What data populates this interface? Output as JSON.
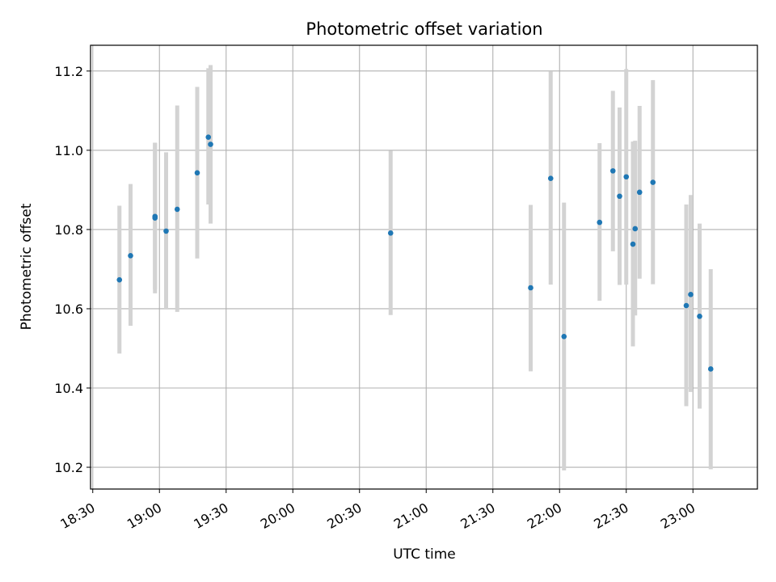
{
  "chart_data": {
    "type": "scatter",
    "title": "Photometric offset variation",
    "xlabel": "UTC time",
    "ylabel": "Photometric offset",
    "xlim": [
      "18:29",
      "23:29"
    ],
    "ylim": [
      10.145,
      11.265
    ],
    "grid": true,
    "x_ticks": [
      "18:30",
      "19:00",
      "19:30",
      "20:00",
      "20:30",
      "21:00",
      "21:30",
      "22:00",
      "22:30",
      "23:00"
    ],
    "y_ticks": [
      10.2,
      10.4,
      10.6,
      10.8,
      11.0,
      11.2
    ],
    "point_color": "#1f77b4",
    "errorbar_color": "#d3d3d3",
    "points": [
      {
        "x": "18:42",
        "y": 10.673,
        "lo": 10.487,
        "hi": 10.86
      },
      {
        "x": "18:47",
        "y": 10.734,
        "lo": 10.557,
        "hi": 10.915
      },
      {
        "x": "18:58",
        "y": 10.833,
        "lo": 10.649,
        "hi": 11.019
      },
      {
        "x": "18:58",
        "y": 10.829,
        "lo": 10.639,
        "hi": 11.019
      },
      {
        "x": "19:03",
        "y": 10.796,
        "lo": 10.6,
        "hi": 10.995
      },
      {
        "x": "19:08",
        "y": 10.851,
        "lo": 10.592,
        "hi": 11.113
      },
      {
        "x": "19:17",
        "y": 10.943,
        "lo": 10.727,
        "hi": 11.16
      },
      {
        "x": "19:22",
        "y": 11.033,
        "lo": 10.863,
        "hi": 11.207
      },
      {
        "x": "19:23",
        "y": 11.015,
        "lo": 10.815,
        "hi": 11.215
      },
      {
        "x": "20:44",
        "y": 10.791,
        "lo": 10.584,
        "hi": 10.999
      },
      {
        "x": "21:47",
        "y": 10.653,
        "lo": 10.442,
        "hi": 10.862
      },
      {
        "x": "21:56",
        "y": 10.929,
        "lo": 10.661,
        "hi": 11.199
      },
      {
        "x": "22:02",
        "y": 10.53,
        "lo": 10.192,
        "hi": 10.868
      },
      {
        "x": "22:18",
        "y": 10.818,
        "lo": 10.62,
        "hi": 11.018
      },
      {
        "x": "22:24",
        "y": 10.948,
        "lo": 10.745,
        "hi": 11.15
      },
      {
        "x": "22:27",
        "y": 10.884,
        "lo": 10.66,
        "hi": 11.108
      },
      {
        "x": "22:30",
        "y": 10.933,
        "lo": 10.661,
        "hi": 11.205
      },
      {
        "x": "22:33",
        "y": 10.763,
        "lo": 10.505,
        "hi": 11.022
      },
      {
        "x": "22:34",
        "y": 10.802,
        "lo": 10.583,
        "hi": 11.024
      },
      {
        "x": "22:36",
        "y": 10.894,
        "lo": 10.676,
        "hi": 11.112
      },
      {
        "x": "22:42",
        "y": 10.919,
        "lo": 10.662,
        "hi": 11.177
      },
      {
        "x": "22:57",
        "y": 10.608,
        "lo": 10.354,
        "hi": 10.863
      },
      {
        "x": "22:59",
        "y": 10.636,
        "lo": 10.39,
        "hi": 10.887
      },
      {
        "x": "23:03",
        "y": 10.581,
        "lo": 10.348,
        "hi": 10.815
      },
      {
        "x": "23:08",
        "y": 10.448,
        "lo": 10.195,
        "hi": 10.7
      }
    ]
  }
}
